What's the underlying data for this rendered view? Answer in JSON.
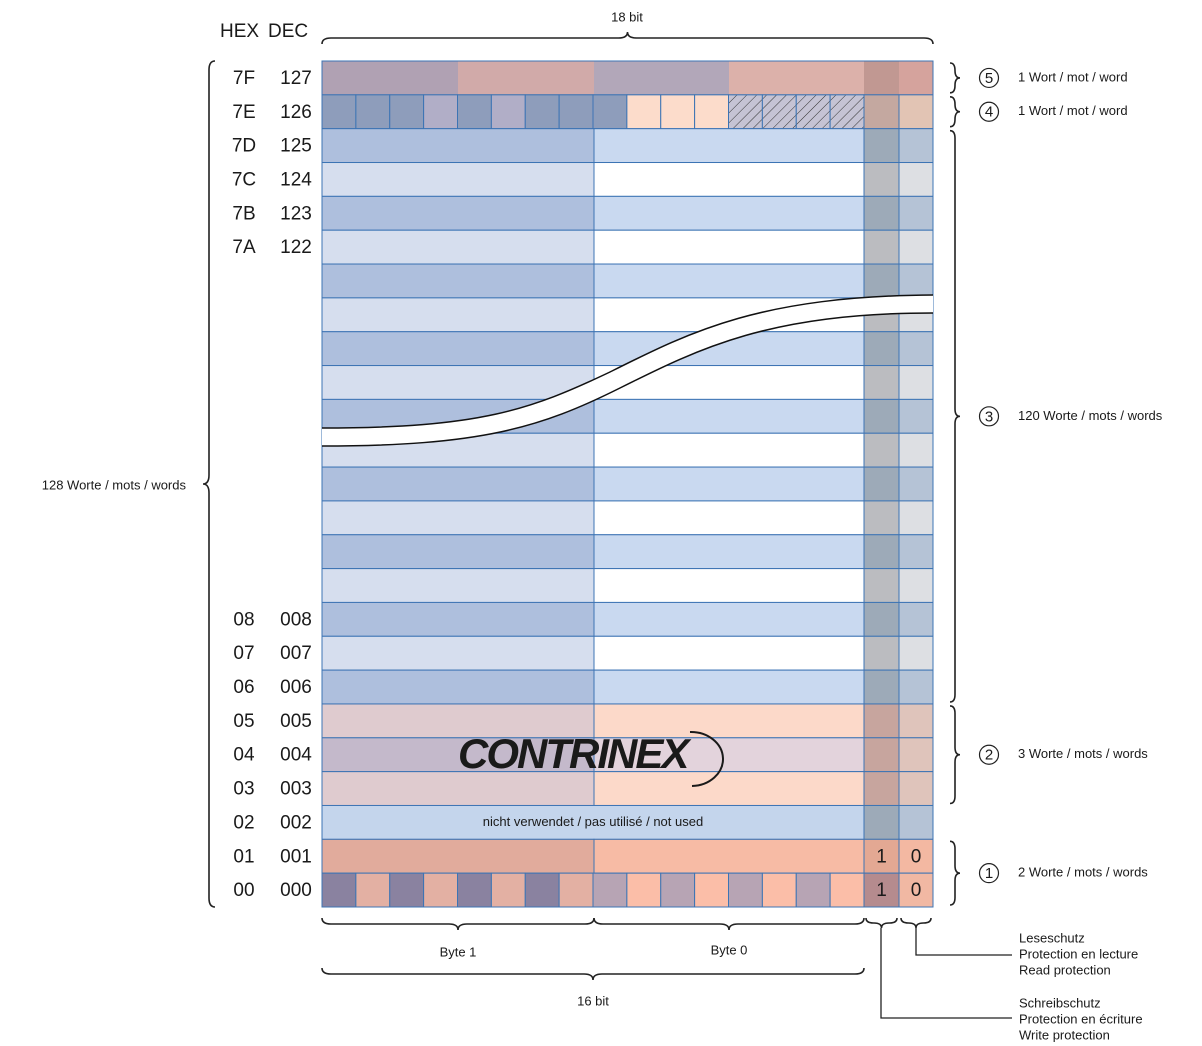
{
  "header": {
    "hex": "HEX",
    "dec": "DEC",
    "width": "18 bit"
  },
  "rows": [
    {
      "hex": "7F",
      "dec": "127"
    },
    {
      "hex": "7E",
      "dec": "126"
    },
    {
      "hex": "7D",
      "dec": "125"
    },
    {
      "hex": "7C",
      "dec": "124"
    },
    {
      "hex": "7B",
      "dec": "123"
    },
    {
      "hex": "7A",
      "dec": "122"
    },
    {
      "hex": "08",
      "dec": "008"
    },
    {
      "hex": "07",
      "dec": "007"
    },
    {
      "hex": "06",
      "dec": "006"
    },
    {
      "hex": "05",
      "dec": "005"
    },
    {
      "hex": "04",
      "dec": "004"
    },
    {
      "hex": "03",
      "dec": "003"
    },
    {
      "hex": "02",
      "dec": "002"
    },
    {
      "hex": "01",
      "dec": "001"
    },
    {
      "hex": "00",
      "dec": "000"
    }
  ],
  "unused": "nicht verwendet / pas utilisé / not used",
  "logo": "CONTRINEX",
  "bits": [
    [
      "1",
      "0"
    ],
    [
      "1",
      "0"
    ]
  ],
  "sections": [
    {
      "number": "5",
      "label": "1 Wort / mot / word"
    },
    {
      "number": "4",
      "label": "1 Wort / mot / word"
    },
    {
      "number": "3",
      "label": "120 Worte / mots / words"
    },
    {
      "number": "2",
      "label": "3 Worte / mots / words"
    },
    {
      "number": "1",
      "label": "2 Worte / mots / words"
    }
  ],
  "total": "128 Worte / mots / words",
  "bytes": [
    "Byte 1",
    "Byte 0"
  ],
  "data_width": "16 bit",
  "read_protection": [
    "Leseschutz",
    "Protection en lecture",
    "Read protection"
  ],
  "write_protection": [
    "Schreibschutz",
    "Protection en écriture",
    "Write protection"
  ]
}
